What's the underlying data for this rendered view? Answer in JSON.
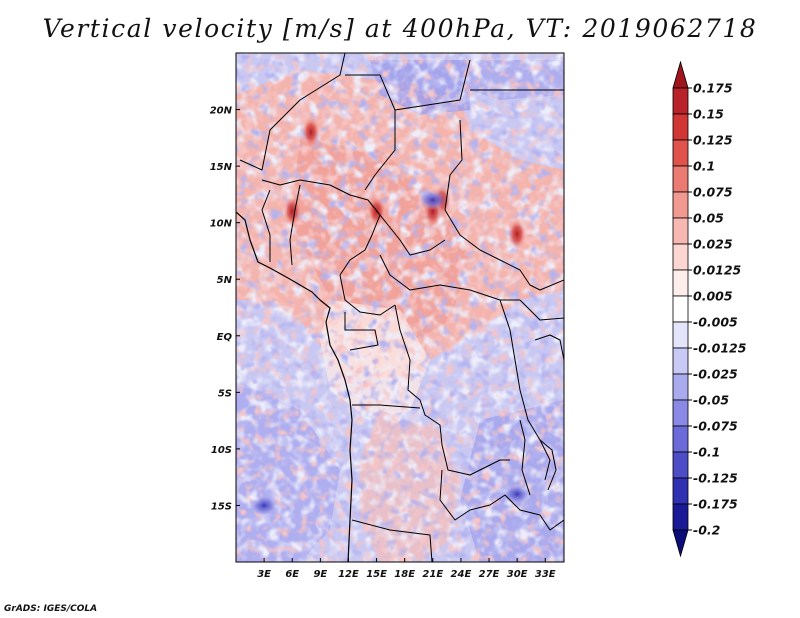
{
  "title": "Vertical velocity [m/s] at 400hPa, VT: 2019062718",
  "credit": "GrADS: IGES/COLA",
  "chart_data": {
    "type": "heatmap",
    "title": "Vertical velocity [m/s] at 400hPa, VT: 2019062718",
    "field": "Vertical velocity",
    "units": "m/s",
    "level": "400hPa",
    "valid_time": "2019062718",
    "lon_range": [
      0,
      35
    ],
    "lat_range": [
      -20,
      25
    ],
    "x_ticks": [
      {
        "value": 3,
        "label": "3E"
      },
      {
        "value": 6,
        "label": "6E"
      },
      {
        "value": 9,
        "label": "9E"
      },
      {
        "value": 12,
        "label": "12E"
      },
      {
        "value": 15,
        "label": "15E"
      },
      {
        "value": 18,
        "label": "18E"
      },
      {
        "value": 21,
        "label": "21E"
      },
      {
        "value": 24,
        "label": "24E"
      },
      {
        "value": 27,
        "label": "27E"
      },
      {
        "value": 30,
        "label": "30E"
      },
      {
        "value": 33,
        "label": "33E"
      }
    ],
    "y_ticks": [
      {
        "value": 20,
        "label": "20N"
      },
      {
        "value": 15,
        "label": "15N"
      },
      {
        "value": 10,
        "label": "10N"
      },
      {
        "value": 5,
        "label": "5N"
      },
      {
        "value": 0,
        "label": "EQ"
      },
      {
        "value": -5,
        "label": "5S"
      },
      {
        "value": -10,
        "label": "10S"
      },
      {
        "value": -15,
        "label": "15S"
      }
    ],
    "colorbar": {
      "levels": [
        "0.175",
        "0.15",
        "0.125",
        "0.1",
        "0.075",
        "0.05",
        "0.025",
        "0.0125",
        "0.005",
        "-0.005",
        "-0.0125",
        "-0.025",
        "-0.05",
        "-0.075",
        "-0.1",
        "-0.125",
        "-0.175",
        "-0.2"
      ],
      "colors": [
        "#a0141e",
        "#b8222a",
        "#cf3634",
        "#e0534c",
        "#ea7a72",
        "#f29a92",
        "#f7b8b2",
        "#fbd6d2",
        "#fdeeec",
        "#ffffff",
        "#e4e4fb",
        "#c9c9f6",
        "#aaaaef",
        "#8a8ae6",
        "#6a6ad9",
        "#4d4dc8",
        "#3030b2",
        "#1a1a96",
        "#0c0c7a"
      ]
    },
    "features": {
      "positive_cores": [
        {
          "lon": 22,
          "lat": 12
        },
        {
          "lon": 21,
          "lat": 11
        },
        {
          "lon": 8,
          "lat": 18
        },
        {
          "lon": 6,
          "lat": 11
        },
        {
          "lon": 30,
          "lat": 9
        },
        {
          "lon": 15,
          "lat": 11
        }
      ],
      "negative_cores": [
        {
          "lon": 21,
          "lat": 12
        },
        {
          "lon": 30,
          "lat": -14
        },
        {
          "lon": 3,
          "lat": -15
        }
      ]
    }
  }
}
